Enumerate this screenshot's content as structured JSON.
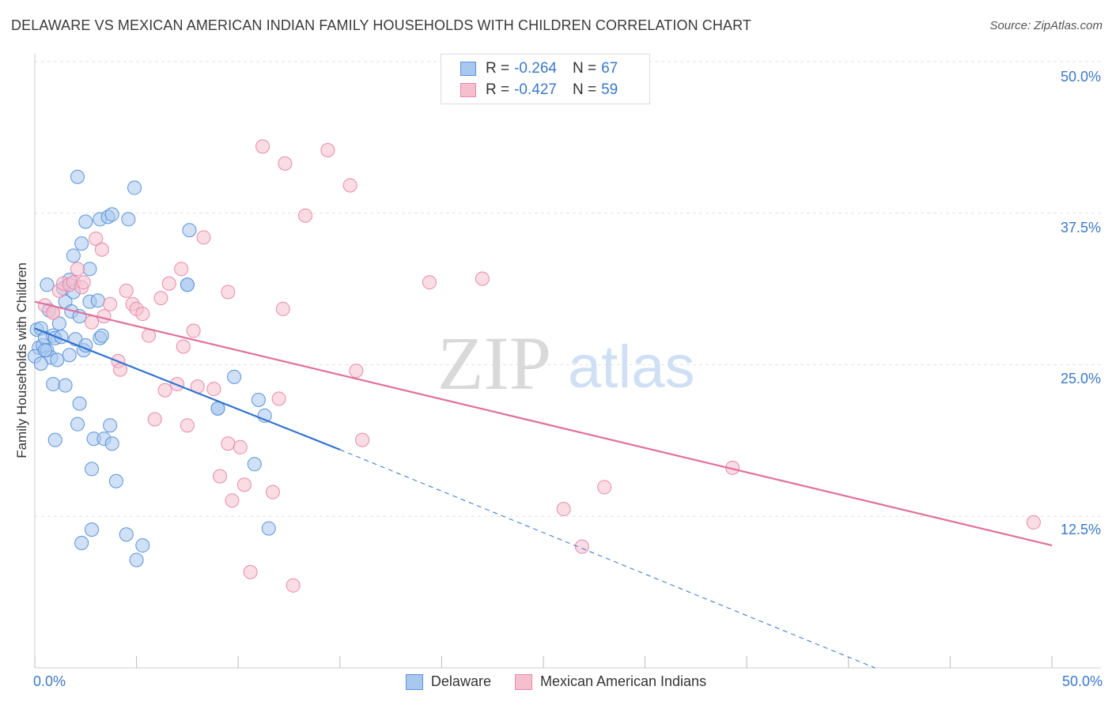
{
  "header": {
    "title": "DELAWARE VS MEXICAN AMERICAN INDIAN FAMILY HOUSEHOLDS WITH CHILDREN CORRELATION CHART",
    "source": "Source: ZipAtlas.com"
  },
  "watermark": {
    "zip": "ZIP",
    "atlas": "atlas"
  },
  "legend": {
    "rows": [
      {
        "r_label": "R =",
        "r_value": "-0.264",
        "n_label": "N =",
        "n_value": "67",
        "color": "#a9c8f0",
        "border": "#5b93d6"
      },
      {
        "r_label": "R =",
        "r_value": "-0.427",
        "n_label": "N =",
        "n_value": "59",
        "color": "#f6bfd0",
        "border": "#e88aa8"
      }
    ]
  },
  "chart_data": {
    "type": "scatter",
    "title": "DELAWARE VS MEXICAN AMERICAN INDIAN FAMILY HOUSEHOLDS WITH CHILDREN CORRELATION CHART",
    "xlabel": "",
    "ylabel": "Family Households with Children",
    "xlim": [
      0,
      50
    ],
    "ylim": [
      0,
      50
    ],
    "x_tick_labels": [
      "0.0%",
      "50.0%"
    ],
    "y_tick_labels": [
      "12.5%",
      "25.0%",
      "37.5%",
      "50.0%"
    ],
    "y_ticks": [
      12.5,
      25.0,
      37.5,
      50.0
    ],
    "grid": true,
    "series": [
      {
        "name": "Delaware",
        "color": "#a9c8f0",
        "edge": "#5b93d6",
        "line_color": "#2f72d0",
        "trend": {
          "x0": 0,
          "y0": 28.0,
          "x1": 15.0,
          "y1": 18.0,
          "dashed_to_x": 41.3,
          "dashed_to_y": 0
        },
        "points": [
          [
            0.1,
            27.9
          ],
          [
            0.2,
            26.4
          ],
          [
            0.3,
            28.0
          ],
          [
            0.4,
            26.6
          ],
          [
            0.5,
            27.2
          ],
          [
            0.6,
            26.2
          ],
          [
            0.6,
            31.6
          ],
          [
            0.7,
            29.5
          ],
          [
            0.8,
            25.6
          ],
          [
            0.9,
            27.4
          ],
          [
            0.9,
            23.4
          ],
          [
            1.0,
            18.8
          ],
          [
            1.0,
            27.2
          ],
          [
            1.1,
            25.4
          ],
          [
            1.2,
            28.4
          ],
          [
            1.3,
            27.3
          ],
          [
            1.4,
            31.3
          ],
          [
            1.5,
            30.2
          ],
          [
            1.5,
            23.3
          ],
          [
            1.7,
            25.8
          ],
          [
            1.7,
            32.0
          ],
          [
            1.8,
            29.4
          ],
          [
            1.9,
            31.0
          ],
          [
            1.9,
            34.0
          ],
          [
            2.0,
            27.1
          ],
          [
            2.1,
            20.1
          ],
          [
            2.2,
            29.0
          ],
          [
            2.2,
            21.8
          ],
          [
            2.3,
            10.3
          ],
          [
            2.3,
            35.0
          ],
          [
            2.5,
            36.8
          ],
          [
            2.4,
            26.2
          ],
          [
            2.5,
            26.6
          ],
          [
            2.7,
            30.2
          ],
          [
            2.8,
            16.4
          ],
          [
            2.8,
            11.4
          ],
          [
            2.7,
            32.9
          ],
          [
            2.9,
            18.9
          ],
          [
            3.1,
            30.3
          ],
          [
            3.2,
            37.0
          ],
          [
            3.2,
            27.2
          ],
          [
            3.3,
            27.4
          ],
          [
            3.4,
            18.9
          ],
          [
            3.6,
            37.2
          ],
          [
            3.8,
            37.4
          ],
          [
            3.8,
            18.5
          ],
          [
            4.0,
            15.4
          ],
          [
            4.5,
            11.0
          ],
          [
            4.6,
            37.0
          ],
          [
            4.9,
            39.6
          ],
          [
            5.0,
            8.9
          ],
          [
            5.3,
            10.1
          ],
          [
            0.0,
            25.7
          ],
          [
            0.3,
            25.1
          ],
          [
            0.5,
            26.2
          ],
          [
            3.7,
            20.0
          ],
          [
            2.1,
            40.5
          ],
          [
            7.6,
            36.1
          ],
          [
            7.5,
            31.6
          ],
          [
            9.0,
            21.4
          ],
          [
            9.8,
            24.0
          ],
          [
            11.0,
            22.1
          ],
          [
            11.3,
            20.8
          ],
          [
            11.5,
            11.5
          ],
          [
            10.8,
            16.8
          ],
          [
            7.5,
            31.6
          ],
          [
            9.0,
            21.4
          ]
        ]
      },
      {
        "name": "Mexican American Indians",
        "color": "#f6bfd0",
        "edge": "#e88aa8",
        "line_color": "#e0709a",
        "trend": {
          "x0": 0,
          "y0": 30.2,
          "x1": 50.0,
          "y1": 10.1
        },
        "points": [
          [
            0.5,
            29.9
          ],
          [
            0.9,
            29.3
          ],
          [
            1.2,
            31.1
          ],
          [
            1.4,
            31.7
          ],
          [
            1.7,
            31.6
          ],
          [
            1.9,
            31.8
          ],
          [
            2.1,
            32.9
          ],
          [
            2.3,
            31.4
          ],
          [
            2.4,
            31.8
          ],
          [
            2.8,
            28.5
          ],
          [
            3.0,
            35.4
          ],
          [
            3.3,
            34.5
          ],
          [
            3.4,
            29.0
          ],
          [
            3.7,
            30.0
          ],
          [
            4.1,
            25.3
          ],
          [
            4.2,
            24.6
          ],
          [
            4.5,
            31.1
          ],
          [
            4.8,
            30.0
          ],
          [
            5.0,
            29.6
          ],
          [
            5.3,
            29.2
          ],
          [
            5.6,
            27.4
          ],
          [
            5.9,
            20.5
          ],
          [
            6.2,
            30.5
          ],
          [
            6.4,
            22.9
          ],
          [
            6.6,
            31.7
          ],
          [
            7.0,
            23.4
          ],
          [
            7.2,
            32.9
          ],
          [
            7.3,
            26.5
          ],
          [
            7.5,
            20.0
          ],
          [
            7.8,
            27.8
          ],
          [
            8.0,
            23.2
          ],
          [
            8.3,
            35.5
          ],
          [
            8.8,
            23.0
          ],
          [
            9.1,
            15.8
          ],
          [
            9.5,
            18.5
          ],
          [
            9.5,
            31.0
          ],
          [
            9.7,
            13.8
          ],
          [
            10.1,
            18.2
          ],
          [
            10.3,
            15.1
          ],
          [
            10.6,
            7.9
          ],
          [
            11.2,
            43.0
          ],
          [
            11.7,
            14.5
          ],
          [
            12.0,
            22.2
          ],
          [
            12.2,
            29.6
          ],
          [
            12.3,
            41.6
          ],
          [
            12.7,
            6.8
          ],
          [
            13.3,
            37.3
          ],
          [
            14.4,
            42.7
          ],
          [
            15.5,
            39.8
          ],
          [
            15.8,
            24.5
          ],
          [
            16.1,
            18.8
          ],
          [
            19.4,
            31.8
          ],
          [
            22.0,
            32.1
          ],
          [
            26.0,
            13.1
          ],
          [
            26.9,
            10.0
          ],
          [
            28.0,
            14.9
          ],
          [
            34.3,
            16.5
          ],
          [
            49.1,
            12.0
          ],
          [
            0.9,
            29.3
          ]
        ]
      }
    ]
  },
  "bottom_legend": [
    {
      "label": "Delaware",
      "color": "#a9c8f0",
      "border": "#5b93d6"
    },
    {
      "label": "Mexican American Indians",
      "color": "#f6bfd0",
      "border": "#e88aa8"
    }
  ]
}
